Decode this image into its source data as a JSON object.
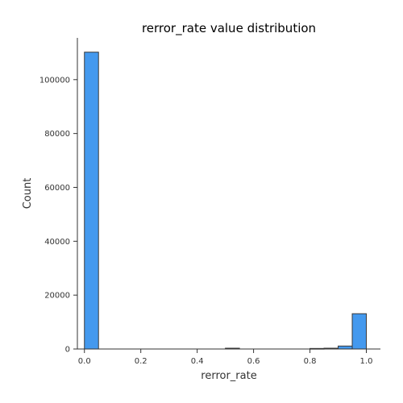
{
  "chart_data": {
    "type": "bar",
    "title": "rerror_rate value distribution",
    "xlabel": "rerror_rate",
    "ylabel": "Count",
    "xlim": [
      -0.025,
      1.05
    ],
    "ylim": [
      0,
      115500
    ],
    "xticks": [
      0.0,
      0.2,
      0.4,
      0.6,
      0.8,
      1.0
    ],
    "xtick_labels": [
      "0.0",
      "0.2",
      "0.4",
      "0.6",
      "0.8",
      "1.0"
    ],
    "yticks": [
      0,
      20000,
      40000,
      60000,
      80000,
      100000
    ],
    "ytick_labels": [
      "0",
      "20000",
      "40000",
      "60000",
      "80000",
      "100000"
    ],
    "grid": false,
    "bar_color": "#4499ee",
    "bins": [
      {
        "x0": 0.0,
        "x1": 0.05,
        "count": 110200
      },
      {
        "x0": 0.05,
        "x1": 0.1,
        "count": 0
      },
      {
        "x0": 0.1,
        "x1": 0.15,
        "count": 0
      },
      {
        "x0": 0.15,
        "x1": 0.2,
        "count": 0
      },
      {
        "x0": 0.2,
        "x1": 0.25,
        "count": 0
      },
      {
        "x0": 0.25,
        "x1": 0.3,
        "count": 0
      },
      {
        "x0": 0.3,
        "x1": 0.35,
        "count": 0
      },
      {
        "x0": 0.35,
        "x1": 0.4,
        "count": 0
      },
      {
        "x0": 0.4,
        "x1": 0.45,
        "count": 0
      },
      {
        "x0": 0.45,
        "x1": 0.5,
        "count": 0
      },
      {
        "x0": 0.5,
        "x1": 0.55,
        "count": 300
      },
      {
        "x0": 0.55,
        "x1": 0.6,
        "count": 0
      },
      {
        "x0": 0.6,
        "x1": 0.65,
        "count": 0
      },
      {
        "x0": 0.65,
        "x1": 0.7,
        "count": 0
      },
      {
        "x0": 0.7,
        "x1": 0.75,
        "count": 0
      },
      {
        "x0": 0.75,
        "x1": 0.8,
        "count": 0
      },
      {
        "x0": 0.8,
        "x1": 0.85,
        "count": 200
      },
      {
        "x0": 0.85,
        "x1": 0.9,
        "count": 300
      },
      {
        "x0": 0.9,
        "x1": 0.95,
        "count": 1100
      },
      {
        "x0": 0.95,
        "x1": 1.0,
        "count": 13100
      }
    ]
  }
}
